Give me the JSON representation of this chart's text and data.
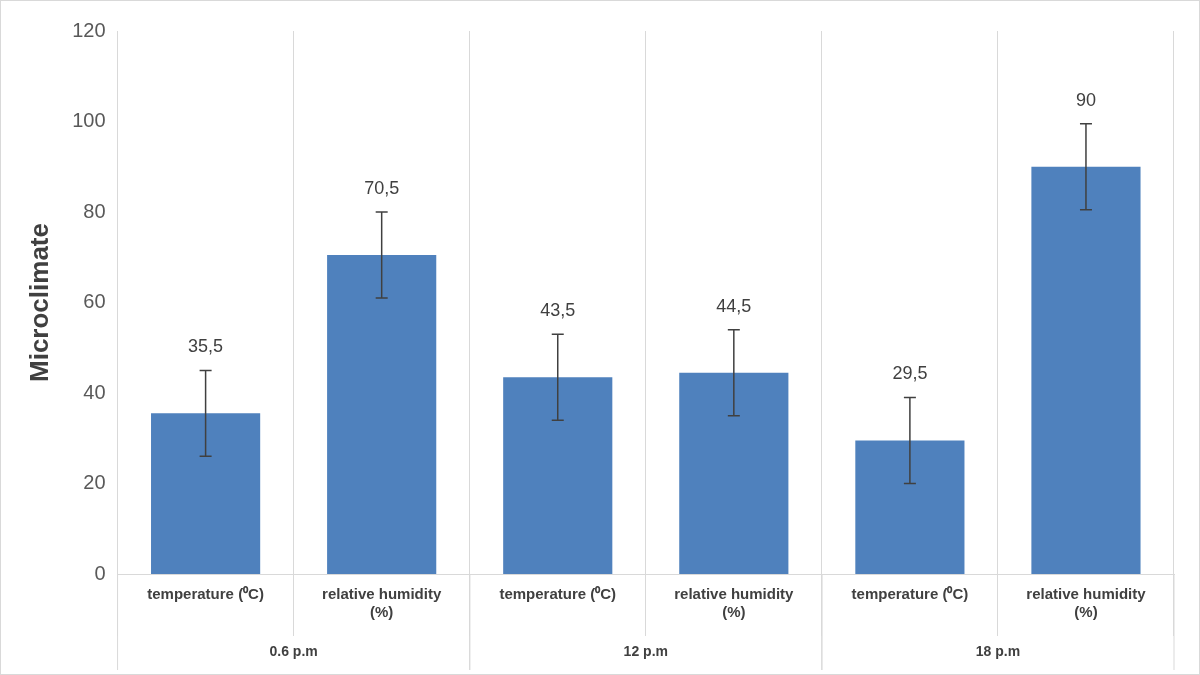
{
  "chart_data": {
    "type": "bar",
    "ylabel": "Microclimate",
    "categories": [
      "temperature (⁰C)",
      "relative humidity (%)",
      "temperature (⁰C)",
      "relative humidity (%)",
      "temperature (⁰C)",
      "relative humidity (%)"
    ],
    "values": [
      35.5,
      70.5,
      43.5,
      44.5,
      29.5,
      90
    ],
    "errors": [
      9.5,
      9.5,
      9.5,
      9.5,
      9.5,
      9.5
    ],
    "value_labels": [
      "35,5",
      "70,5",
      "43,5",
      "44,5",
      "29,5",
      "90"
    ],
    "color": "#4f81bd",
    "annotations": [
      "0.6 p.m",
      "12 p.m",
      "18 p.m"
    ],
    "ylim": [
      0,
      120
    ],
    "yticks": [
      0,
      20,
      40,
      60,
      80,
      100,
      120
    ],
    "grid": "x",
    "legend": false
  }
}
